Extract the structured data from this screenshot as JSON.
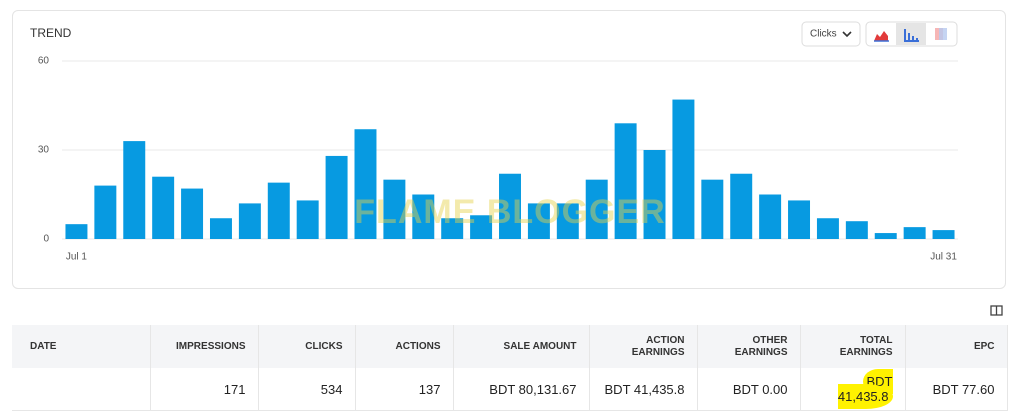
{
  "chart_data": {
    "type": "bar",
    "title": "TREND",
    "control": "Clicks",
    "watermark": "FLAME BLOGGER",
    "categories": [
      "Jul 1",
      null,
      null,
      null,
      null,
      null,
      null,
      null,
      null,
      null,
      null,
      null,
      null,
      null,
      null,
      null,
      null,
      null,
      null,
      null,
      null,
      null,
      null,
      null,
      null,
      null,
      null,
      null,
      null,
      null,
      "Jul 31"
    ],
    "values": [
      5,
      18,
      33,
      21,
      17,
      7,
      12,
      19,
      13,
      28,
      37,
      20,
      15,
      7,
      8,
      22,
      12,
      12,
      20,
      39,
      30,
      47,
      20,
      22,
      15,
      13,
      7,
      6,
      2,
      4,
      3
    ],
    "color": "#079ae1",
    "ylim": [
      0,
      60
    ],
    "yticks": [
      0,
      30,
      60
    ],
    "grid": true
  },
  "table": {
    "headers": [
      "DATE",
      "IMPRESSIONS",
      "CLICKS",
      "ACTIONS",
      "SALE AMOUNT",
      "ACTION EARNINGS",
      "OTHER EARNINGS",
      "TOTAL EARNINGS",
      "EPC"
    ],
    "rows": [
      [
        null,
        "171",
        "534",
        "137",
        "BDT 80,131.67",
        "BDT 41,435.8",
        "BDT 0.00",
        "BDT 41,435.8",
        "BDT 77.60"
      ]
    ],
    "highlight": [
      0,
      7
    ]
  }
}
